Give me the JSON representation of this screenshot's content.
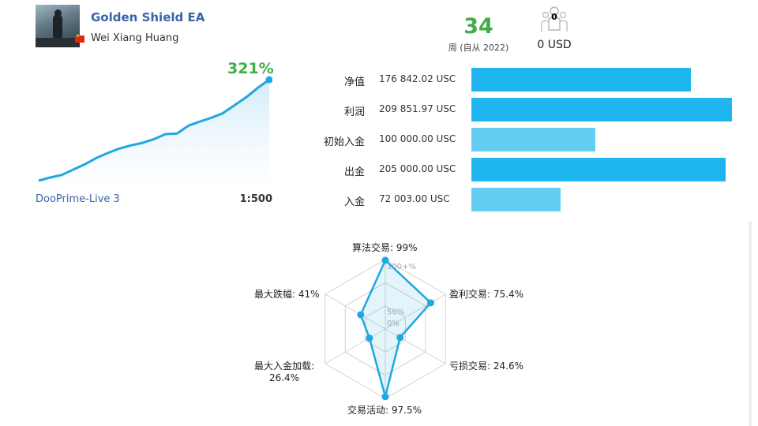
{
  "header": {
    "ea_name": "Golden Shield EA",
    "author": "Wei Xiang Huang",
    "flag": "CN",
    "weeks": "34",
    "weeks_label": "周 (自从 2022)",
    "subscribers_count": "0",
    "subscribers_usd": "0 USD",
    "subscribers_icon": "users-icon"
  },
  "growth": {
    "percent_label": "321%",
    "server": "DooPrime-Live 3",
    "leverage": "1:500",
    "line_color": "#1fa8e0"
  },
  "stats": [
    {
      "label": "净值",
      "value": "176 842.02 USC",
      "amount": 176842.02,
      "color": "#1fb6ef"
    },
    {
      "label": "利润",
      "value": "209 851.97 USC",
      "amount": 209851.97,
      "color": "#1fb6ef"
    },
    {
      "label": "初始入金",
      "value": "100 000.00 USC",
      "amount": 100000.0,
      "color": "#63ccf3"
    },
    {
      "label": "出金",
      "value": "205 000.00 USC",
      "amount": 205000.0,
      "color": "#1fb6ef"
    },
    {
      "label": "入金",
      "value": "72 003.00 USC",
      "amount": 72003.0,
      "color": "#63ccf3"
    }
  ],
  "radar": {
    "ring_labels": [
      "100+%",
      "50%",
      "0%"
    ],
    "axes": [
      {
        "label": "算法交易: 99%",
        "value": 99
      },
      {
        "label": "盈利交易: 75.4%",
        "value": 75.4
      },
      {
        "label": "亏损交易: 24.6%",
        "value": 24.6
      },
      {
        "label": "交易活动: 97.5%",
        "value": 97.5
      },
      {
        "label": "最大入金加载:\n26.4%",
        "value": 26.4
      },
      {
        "label": "最大跌幅: 41%",
        "value": 41
      }
    ],
    "accent": "#1fa8e0"
  },
  "chart_data": {
    "type": "area",
    "title": "321%",
    "x": [
      0,
      1,
      2,
      3,
      4,
      5,
      6,
      7,
      8,
      9,
      10,
      11,
      12,
      13,
      14,
      15,
      16,
      17,
      18,
      19,
      20
    ],
    "y": [
      0,
      10,
      18,
      35,
      52,
      72,
      88,
      102,
      112,
      120,
      132,
      148,
      150,
      175,
      188,
      200,
      215,
      240,
      265,
      295,
      321
    ],
    "xlabel": "",
    "ylabel": "",
    "ylim": [
      0,
      321
    ],
    "grid": false
  }
}
